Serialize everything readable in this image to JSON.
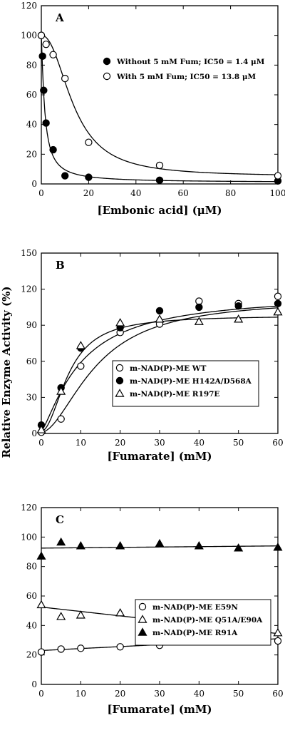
{
  "ylabel_shared": "Relative Enzyme Activity (%)",
  "chart_data": [
    {
      "type": "scatter",
      "panel": "A",
      "xlabel": "[Embonic acid] (μM)",
      "ylabel": "",
      "xlim": [
        0,
        100
      ],
      "ylim": [
        0,
        120
      ],
      "xticks": [
        0,
        20,
        40,
        60,
        80,
        100
      ],
      "yticks": [
        0,
        20,
        40,
        60,
        80,
        100,
        120
      ],
      "legend_placement": "center-right",
      "series": [
        {
          "name": "Without 5 mM Fum; IC50 = 1.4 μM",
          "marker": "filled-circle",
          "x": [
            0,
            0.5,
            1,
            2,
            5,
            10,
            20,
            50,
            100
          ],
          "y": [
            100,
            86,
            63,
            41,
            23,
            5.5,
            4.5,
            2.5,
            2
          ],
          "fit": {
            "ic50": 1.4,
            "top": 100,
            "bottom": 1,
            "hill": 1.2
          }
        },
        {
          "name": "With 5 mM Fum; IC50 = 13.8 μM",
          "marker": "open-circle",
          "x": [
            0,
            2,
            5,
            10,
            20,
            50,
            100
          ],
          "y": [
            100,
            94,
            87,
            71,
            28,
            12.5,
            5.5
          ],
          "fit": {
            "ic50": 13.8,
            "top": 100,
            "bottom": 5,
            "hill": 2.2
          }
        }
      ]
    },
    {
      "type": "scatter",
      "panel": "B",
      "xlabel": "[Fumarate] (mM)",
      "ylabel": "Relative Enzyme Activity (%)",
      "xlim": [
        0,
        60
      ],
      "ylim": [
        0,
        150
      ],
      "xticks": [
        0,
        10,
        20,
        30,
        40,
        50,
        60
      ],
      "yticks": [
        0,
        30,
        60,
        90,
        120,
        150
      ],
      "legend_placement": "center-right",
      "series": [
        {
          "name": "m-NAD(P)-ME WT",
          "marker": "open-circle",
          "x": [
            0,
            5,
            10,
            20,
            30,
            40,
            50,
            60
          ],
          "y": [
            1,
            12,
            56,
            84,
            91,
            110,
            108,
            114
          ],
          "fit": {
            "base": 1,
            "vmax": 112,
            "k": 14,
            "n": 1.8
          }
        },
        {
          "name": "m-NAD(P)-ME H142A/D568A",
          "marker": "filled-circle",
          "x": [
            0,
            5,
            10,
            20,
            30,
            40,
            50,
            60
          ],
          "y": [
            7,
            38,
            71,
            88,
            102,
            105,
            106,
            108
          ],
          "fit": {
            "base": 2,
            "vmax": 116,
            "k": 10,
            "n": 1.3
          }
        },
        {
          "name": "m-NAD(P)-ME R197E",
          "marker": "open-triangle",
          "x": [
            0,
            5,
            10,
            20,
            30,
            40,
            50,
            60
          ],
          "y": [
            3,
            35,
            73,
            92,
            95,
            93,
            95,
            101
          ],
          "fit": {
            "base": 2,
            "vmax": 98,
            "k": 7,
            "n": 2.0
          }
        }
      ]
    },
    {
      "type": "scatter",
      "panel": "C",
      "xlabel": "[Fumarate] (mM)",
      "ylabel": "",
      "xlim": [
        0,
        60
      ],
      "ylim": [
        0,
        120
      ],
      "xticks": [
        0,
        10,
        20,
        30,
        40,
        50,
        60
      ],
      "yticks": [
        0,
        20,
        40,
        60,
        80,
        100,
        120
      ],
      "legend_placement": "center-right",
      "series": [
        {
          "name": "m-NAD(P)-ME E59N",
          "marker": "open-circle",
          "x": [
            0,
            5,
            10,
            20,
            30,
            40,
            50,
            60
          ],
          "y": [
            22,
            24,
            24.5,
            25.5,
            26.5,
            31,
            30,
            29.5
          ],
          "fit": {
            "y0": 23,
            "y1": 31
          }
        },
        {
          "name": "m-NAD(P)-ME Q51A/E90A",
          "marker": "open-triangle",
          "x": [
            0,
            5,
            10,
            20,
            30,
            40,
            50,
            60
          ],
          "y": [
            54,
            46,
            47,
            48.5,
            45,
            36,
            36.5,
            35
          ],
          "fit": {
            "y0": 52.5,
            "y1": 34.5
          }
        },
        {
          "name": "m-NAD(P)-ME R91A",
          "marker": "filled-triangle",
          "x": [
            0,
            5,
            10,
            20,
            30,
            40,
            50,
            60
          ],
          "y": [
            87,
            96.5,
            94,
            94,
            95.5,
            94,
            92.5,
            93
          ],
          "fit": {
            "y0": 92.5,
            "y1": 94
          }
        }
      ]
    }
  ]
}
